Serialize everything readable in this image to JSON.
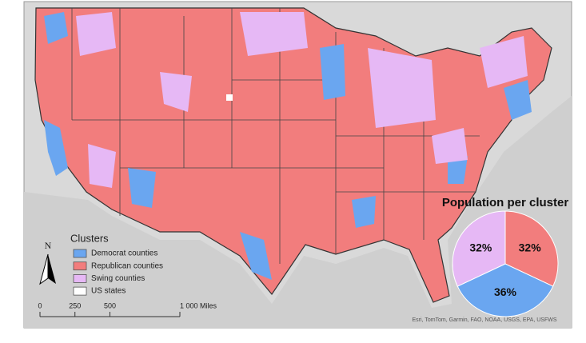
{
  "legend": {
    "title": "Clusters",
    "items": [
      {
        "label": "Democrat counties",
        "color": "#6aa6f0"
      },
      {
        "label": "Republican counties",
        "color": "#f27d7d"
      },
      {
        "label": "Swing counties",
        "color": "#e6b8f5"
      },
      {
        "label": "US states",
        "color": "#ffffff"
      }
    ]
  },
  "north_arrow": "N",
  "scale_bar": {
    "ticks": [
      0,
      250,
      500,
      {
        "value": 1000,
        "label": "1 000 Miles"
      }
    ],
    "range": [
      0,
      1000
    ]
  },
  "attribution": "Esri, TomTom, Garmin, FAO, NOAA, USGS, EPA, USFWS",
  "chart_data": {
    "type": "pie",
    "title": "Population per cluster",
    "values": [
      32,
      36,
      32
    ],
    "value_labels": [
      "32%",
      "36%",
      "32%"
    ],
    "colors": [
      "#f27d7d",
      "#6aa6f0",
      "#e6b8f5"
    ]
  }
}
